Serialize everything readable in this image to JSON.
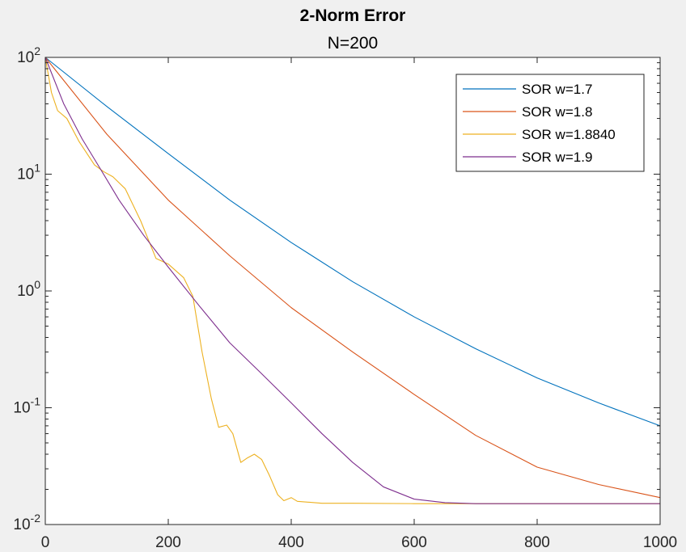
{
  "chart_data": {
    "type": "line",
    "title": "2-Norm Error",
    "subtitle": "N=200",
    "xlabel": "",
    "ylabel": "",
    "xlim": [
      0,
      1000
    ],
    "ylim": [
      0.01,
      100
    ],
    "yscale": "log",
    "grid": false,
    "legend_position": "top-right",
    "x_ticks": [
      {
        "value": 0,
        "label": "0"
      },
      {
        "value": 200,
        "label": "200"
      },
      {
        "value": 400,
        "label": "400"
      },
      {
        "value": 600,
        "label": "600"
      },
      {
        "value": 800,
        "label": "800"
      },
      {
        "value": 1000,
        "label": "1000"
      }
    ],
    "y_ticks": [
      {
        "value": 100,
        "base": "10",
        "exp": "2"
      },
      {
        "value": 10,
        "base": "10",
        "exp": "1"
      },
      {
        "value": 1,
        "base": "10",
        "exp": "0"
      },
      {
        "value": 0.1,
        "base": "10",
        "exp": "-1"
      },
      {
        "value": 0.01,
        "base": "10",
        "exp": "-2"
      }
    ],
    "series": [
      {
        "name": "SOR w=1.7",
        "color": "#0072BD",
        "points": [
          [
            0,
            100
          ],
          [
            100,
            38
          ],
          [
            200,
            15
          ],
          [
            300,
            6
          ],
          [
            400,
            2.6
          ],
          [
            500,
            1.2
          ],
          [
            600,
            0.6
          ],
          [
            700,
            0.32
          ],
          [
            800,
            0.18
          ],
          [
            900,
            0.11
          ],
          [
            1000,
            0.07
          ]
        ]
      },
      {
        "name": "SOR w=1.8",
        "color": "#D95319",
        "points": [
          [
            0,
            100
          ],
          [
            100,
            22
          ],
          [
            200,
            6
          ],
          [
            300,
            2
          ],
          [
            400,
            0.72
          ],
          [
            500,
            0.3
          ],
          [
            600,
            0.13
          ],
          [
            700,
            0.058
          ],
          [
            800,
            0.031
          ],
          [
            900,
            0.022
          ],
          [
            1000,
            0.017
          ]
        ]
      },
      {
        "name": "SOR w=1.8840",
        "color": "#EDB120",
        "points": [
          [
            0,
            100
          ],
          [
            10,
            50
          ],
          [
            20,
            35
          ],
          [
            35,
            30
          ],
          [
            55,
            19
          ],
          [
            80,
            12
          ],
          [
            95,
            10.5
          ],
          [
            110,
            9.5
          ],
          [
            130,
            7.5
          ],
          [
            155,
            4
          ],
          [
            180,
            1.9
          ],
          [
            200,
            1.7
          ],
          [
            225,
            1.3
          ],
          [
            240,
            0.9
          ],
          [
            255,
            0.3
          ],
          [
            270,
            0.12
          ],
          [
            282,
            0.068
          ],
          [
            295,
            0.071
          ],
          [
            305,
            0.06
          ],
          [
            318,
            0.034
          ],
          [
            328,
            0.037
          ],
          [
            340,
            0.04
          ],
          [
            352,
            0.036
          ],
          [
            365,
            0.026
          ],
          [
            378,
            0.018
          ],
          [
            388,
            0.016
          ],
          [
            400,
            0.017
          ],
          [
            410,
            0.0158
          ],
          [
            450,
            0.0152
          ],
          [
            500,
            0.0152
          ],
          [
            600,
            0.0151
          ],
          [
            700,
            0.0151
          ],
          [
            800,
            0.0151
          ],
          [
            900,
            0.0151
          ],
          [
            1000,
            0.0151
          ]
        ]
      },
      {
        "name": "SOR w=1.9",
        "color": "#7E2F8E",
        "points": [
          [
            0,
            100
          ],
          [
            30,
            40
          ],
          [
            60,
            20
          ],
          [
            90,
            11
          ],
          [
            120,
            6
          ],
          [
            160,
            3
          ],
          [
            200,
            1.6
          ],
          [
            250,
            0.75
          ],
          [
            300,
            0.36
          ],
          [
            350,
            0.2
          ],
          [
            400,
            0.11
          ],
          [
            450,
            0.06
          ],
          [
            500,
            0.034
          ],
          [
            550,
            0.021
          ],
          [
            600,
            0.0165
          ],
          [
            650,
            0.0154
          ],
          [
            700,
            0.0151
          ],
          [
            800,
            0.0151
          ],
          [
            900,
            0.0151
          ],
          [
            1000,
            0.0151
          ]
        ]
      }
    ]
  }
}
